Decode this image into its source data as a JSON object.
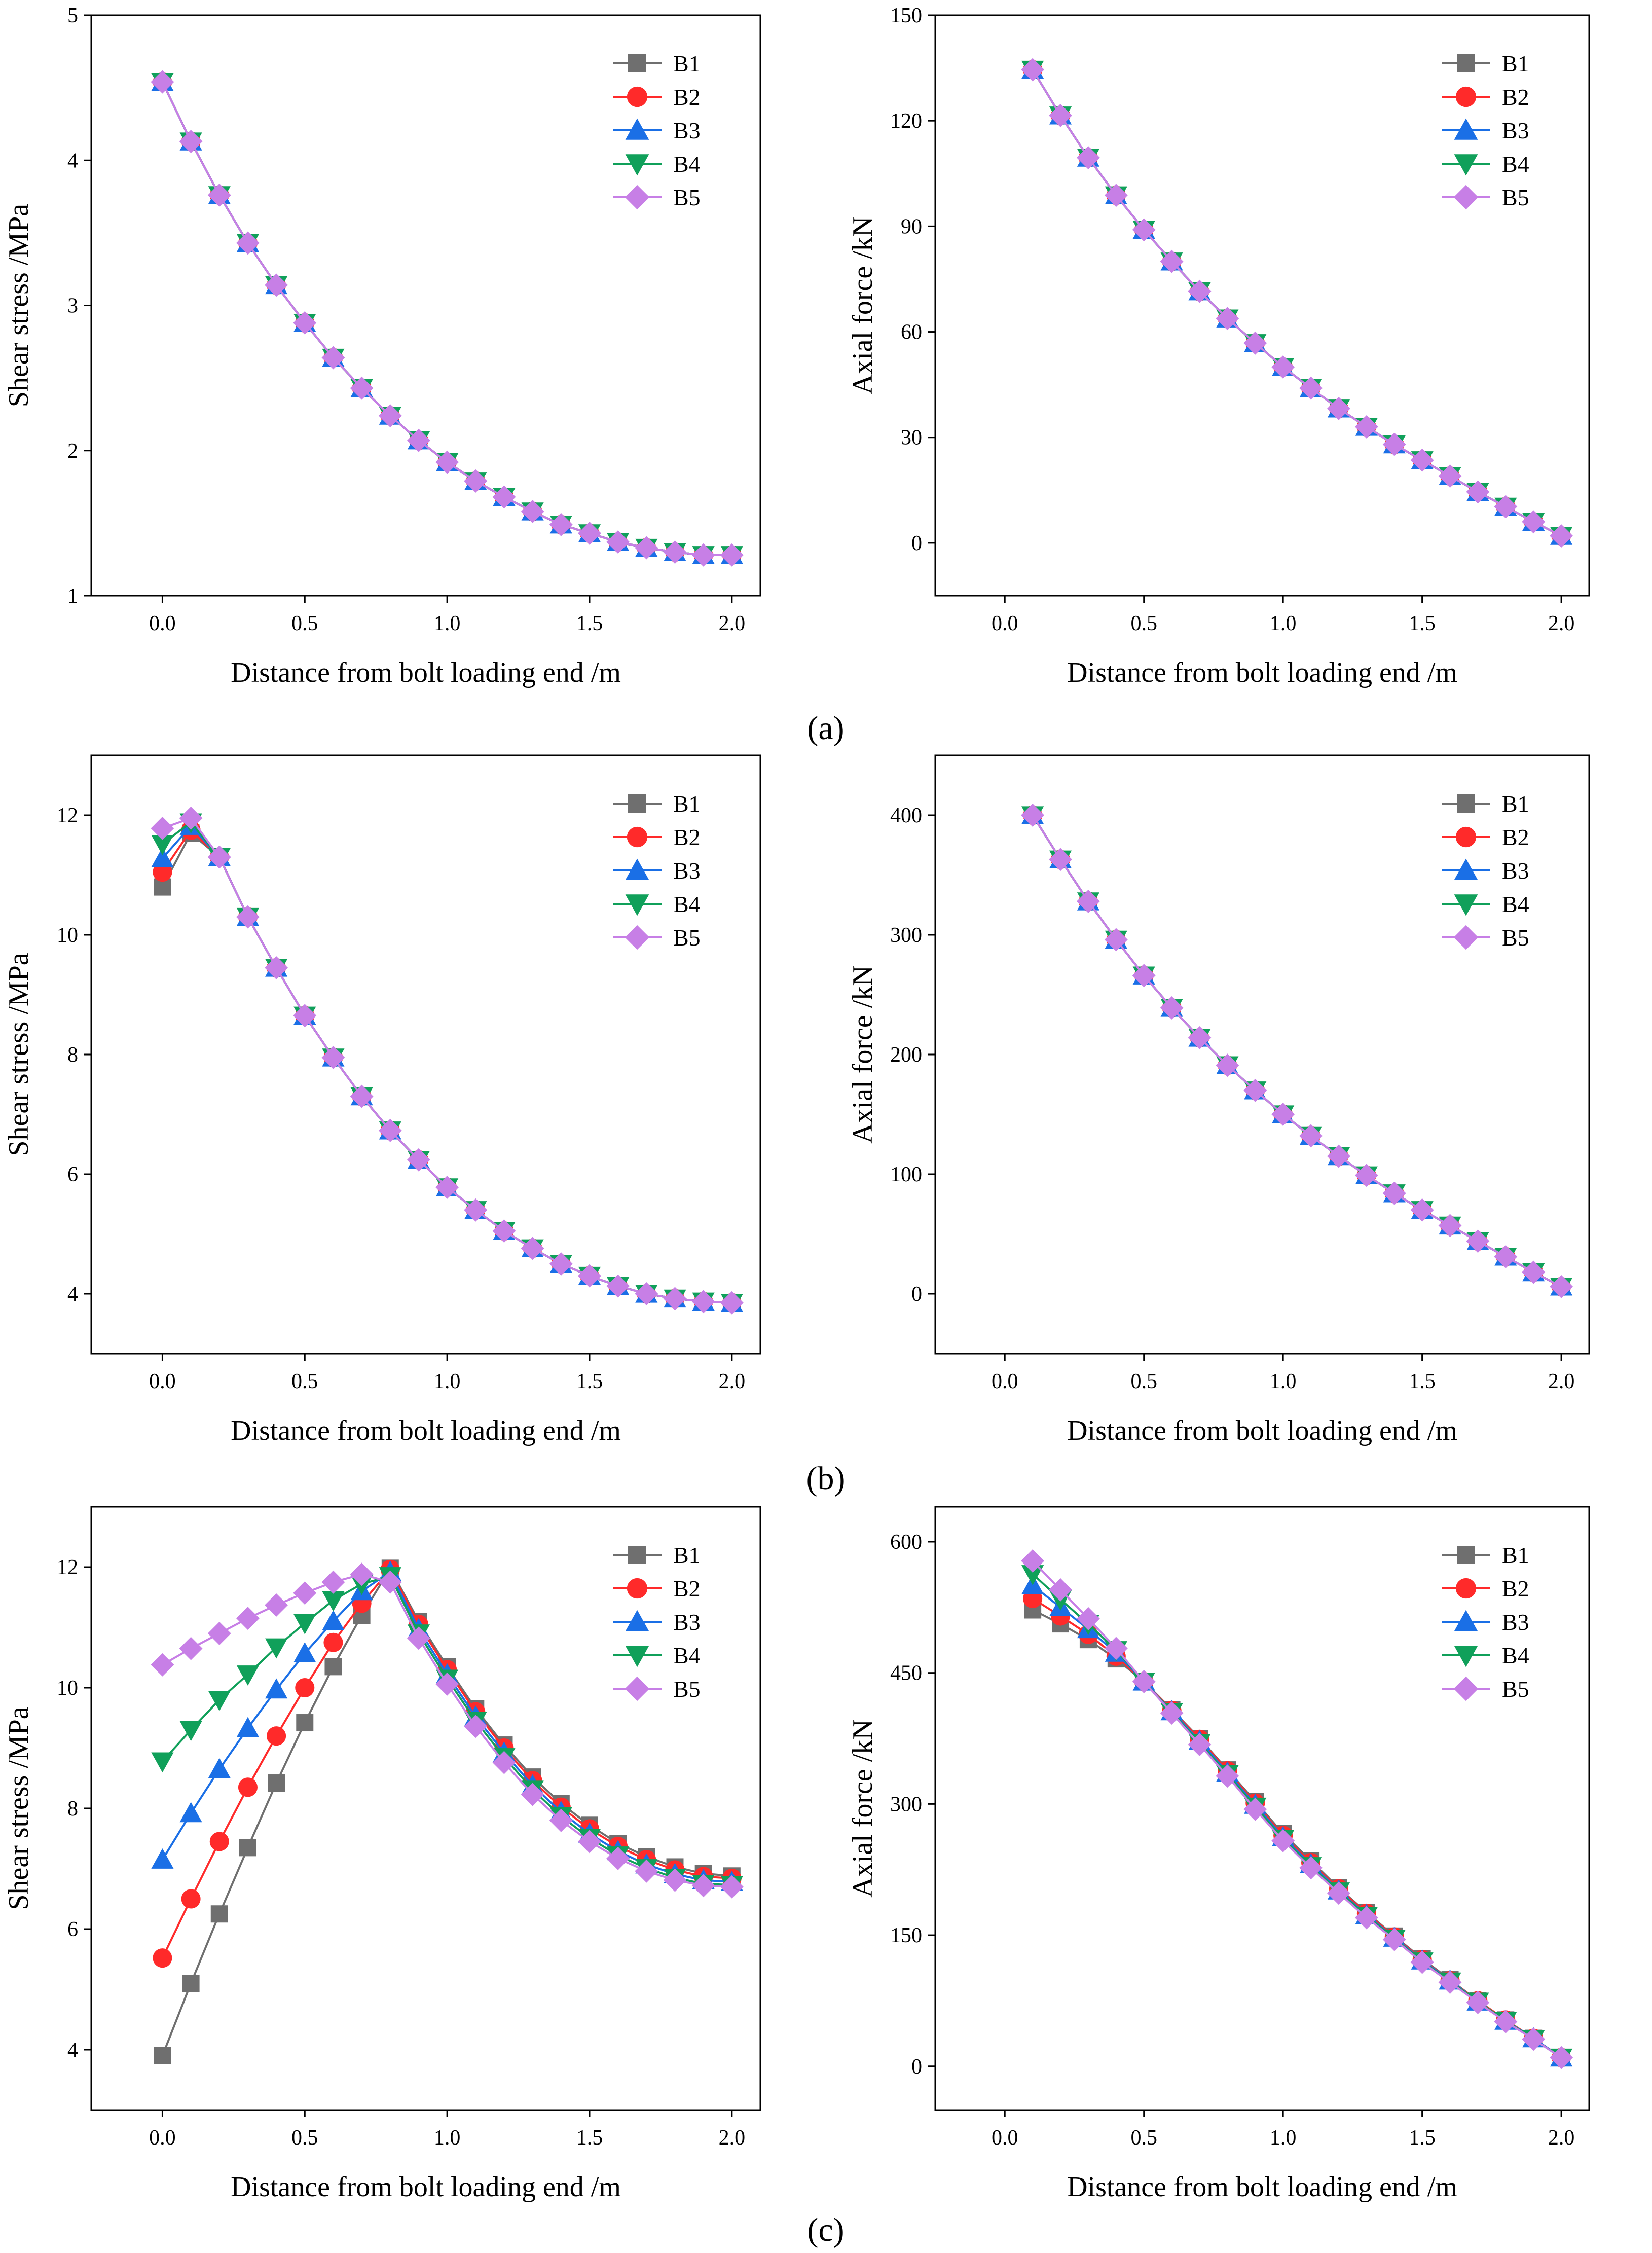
{
  "figure": {
    "panel_labels": [
      "(a)",
      "(b)",
      "(c)"
    ]
  },
  "series_style": [
    {
      "name": "B1",
      "color": "#6f6f6f",
      "marker": "square"
    },
    {
      "name": "B2",
      "color": "#ff2a2a",
      "marker": "circle"
    },
    {
      "name": "B3",
      "color": "#1a6fe6",
      "marker": "triangle-up"
    },
    {
      "name": "B4",
      "color": "#10a05a",
      "marker": "triangle-down"
    },
    {
      "name": "B5",
      "color": "#c77fe6",
      "marker": "diamond"
    }
  ],
  "chart_data": [
    {
      "id": "a-shear",
      "type": "line",
      "panel": "(a)",
      "xlabel": "Distance from bolt loading end /m",
      "ylabel": "Shear stress /MPa",
      "xlim": [
        -0.25,
        2.1
      ],
      "ylim": [
        1,
        5
      ],
      "xticks": [
        "0.0",
        "0.5",
        "1.0",
        "1.5",
        "2.0"
      ],
      "xtick_values": [
        0,
        0.5,
        1.0,
        1.5,
        2.0
      ],
      "yticks": [
        "1",
        "2",
        "3",
        "4",
        "5"
      ],
      "ytick_values": [
        1,
        2,
        3,
        4,
        5
      ],
      "x": [
        0,
        0.1,
        0.2,
        0.3,
        0.4,
        0.5,
        0.6,
        0.7,
        0.8,
        0.9,
        1.0,
        1.1,
        1.2,
        1.3,
        1.4,
        1.5,
        1.6,
        1.7,
        1.8,
        1.9,
        2.0
      ],
      "series": [
        {
          "name": "B1",
          "values": [
            4.54,
            4.13,
            3.76,
            3.43,
            3.14,
            2.88,
            2.64,
            2.43,
            2.24,
            2.07,
            1.92,
            1.79,
            1.68,
            1.58,
            1.49,
            1.43,
            1.37,
            1.33,
            1.3,
            1.28,
            1.28
          ]
        },
        {
          "name": "B2",
          "values": [
            4.54,
            4.13,
            3.76,
            3.43,
            3.14,
            2.88,
            2.64,
            2.43,
            2.24,
            2.07,
            1.92,
            1.79,
            1.68,
            1.58,
            1.49,
            1.43,
            1.37,
            1.33,
            1.3,
            1.28,
            1.28
          ]
        },
        {
          "name": "B3",
          "values": [
            4.54,
            4.13,
            3.76,
            3.43,
            3.14,
            2.88,
            2.64,
            2.43,
            2.24,
            2.07,
            1.92,
            1.79,
            1.68,
            1.58,
            1.49,
            1.43,
            1.37,
            1.33,
            1.3,
            1.28,
            1.28
          ]
        },
        {
          "name": "B4",
          "values": [
            4.54,
            4.13,
            3.76,
            3.43,
            3.14,
            2.88,
            2.64,
            2.43,
            2.24,
            2.07,
            1.92,
            1.79,
            1.68,
            1.58,
            1.49,
            1.43,
            1.37,
            1.33,
            1.3,
            1.28,
            1.28
          ]
        },
        {
          "name": "B5",
          "values": [
            4.54,
            4.13,
            3.76,
            3.43,
            3.14,
            2.88,
            2.64,
            2.43,
            2.24,
            2.07,
            1.92,
            1.79,
            1.68,
            1.58,
            1.49,
            1.43,
            1.37,
            1.33,
            1.3,
            1.28,
            1.28
          ]
        }
      ],
      "legend": "top-right"
    },
    {
      "id": "a-axial",
      "type": "line",
      "panel": "(a)",
      "xlabel": "Distance from bolt loading end /m",
      "ylabel": "Axial force /kN",
      "xlim": [
        -0.25,
        2.1
      ],
      "ylim": [
        -15,
        150
      ],
      "xticks": [
        "0.0",
        "0.5",
        "1.0",
        "1.5",
        "2.0"
      ],
      "xtick_values": [
        0,
        0.5,
        1.0,
        1.5,
        2.0
      ],
      "yticks": [
        "0",
        "30",
        "60",
        "90",
        "120",
        "150"
      ],
      "ytick_values": [
        0,
        30,
        60,
        90,
        120,
        150
      ],
      "x": [
        0.1,
        0.2,
        0.3,
        0.4,
        0.5,
        0.6,
        0.7,
        0.8,
        0.9,
        1.0,
        1.1,
        1.2,
        1.3,
        1.4,
        1.5,
        1.6,
        1.7,
        1.8,
        1.9,
        2.0
      ],
      "series": [
        {
          "name": "B1",
          "values": [
            134.5,
            121.5,
            109.5,
            98.8,
            89,
            80,
            71.5,
            63.8,
            56.8,
            50,
            44,
            38.2,
            33,
            28,
            23.5,
            19,
            14.5,
            10.3,
            6,
            2
          ]
        },
        {
          "name": "B2",
          "values": [
            134.5,
            121.5,
            109.5,
            98.8,
            89,
            80,
            71.5,
            63.8,
            56.8,
            50,
            44,
            38.2,
            33,
            28,
            23.5,
            19,
            14.5,
            10.3,
            6,
            2
          ]
        },
        {
          "name": "B3",
          "values": [
            134.5,
            121.5,
            109.5,
            98.8,
            89,
            80,
            71.5,
            63.8,
            56.8,
            50,
            44,
            38.2,
            33,
            28,
            23.5,
            19,
            14.5,
            10.3,
            6,
            2
          ]
        },
        {
          "name": "B4",
          "values": [
            134.5,
            121.5,
            109.5,
            98.8,
            89,
            80,
            71.5,
            63.8,
            56.8,
            50,
            44,
            38.2,
            33,
            28,
            23.5,
            19,
            14.5,
            10.3,
            6,
            2
          ]
        },
        {
          "name": "B5",
          "values": [
            134.5,
            121.5,
            109.5,
            98.8,
            89,
            80,
            71.5,
            63.8,
            56.8,
            50,
            44,
            38.2,
            33,
            28,
            23.5,
            19,
            14.5,
            10.3,
            6,
            2
          ]
        }
      ],
      "legend": "top-right"
    },
    {
      "id": "b-shear",
      "type": "line",
      "panel": "(b)",
      "xlabel": "Distance from bolt loading end /m",
      "ylabel": "Shear stress /MPa",
      "xlim": [
        -0.25,
        2.1
      ],
      "ylim": [
        3,
        13
      ],
      "xticks": [
        "0.0",
        "0.5",
        "1.0",
        "1.5",
        "2.0"
      ],
      "xtick_values": [
        0,
        0.5,
        1.0,
        1.5,
        2.0
      ],
      "yticks": [
        "4",
        "6",
        "8",
        "10",
        "12"
      ],
      "ytick_values": [
        4,
        6,
        8,
        10,
        12
      ],
      "x": [
        0,
        0.1,
        0.2,
        0.3,
        0.4,
        0.5,
        0.6,
        0.7,
        0.8,
        0.9,
        1.0,
        1.1,
        1.2,
        1.3,
        1.4,
        1.5,
        1.6,
        1.7,
        1.8,
        1.9,
        2.0
      ],
      "series": [
        {
          "name": "B1",
          "values": [
            10.8,
            11.7,
            11.3,
            10.3,
            9.45,
            8.65,
            7.95,
            7.3,
            6.73,
            6.24,
            5.78,
            5.4,
            5.05,
            4.76,
            4.5,
            4.3,
            4.13,
            4.0,
            3.92,
            3.87,
            3.85
          ]
        },
        {
          "name": "B2",
          "values": [
            11.05,
            11.75,
            11.3,
            10.3,
            9.45,
            8.65,
            7.95,
            7.3,
            6.73,
            6.24,
            5.78,
            5.4,
            5.05,
            4.76,
            4.5,
            4.3,
            4.13,
            4.0,
            3.92,
            3.87,
            3.85
          ]
        },
        {
          "name": "B3",
          "values": [
            11.28,
            11.82,
            11.3,
            10.3,
            9.45,
            8.65,
            7.95,
            7.3,
            6.73,
            6.24,
            5.78,
            5.4,
            5.05,
            4.76,
            4.5,
            4.3,
            4.13,
            4.0,
            3.92,
            3.87,
            3.85
          ]
        },
        {
          "name": "B4",
          "values": [
            11.52,
            11.88,
            11.3,
            10.3,
            9.45,
            8.65,
            7.95,
            7.3,
            6.73,
            6.24,
            5.78,
            5.4,
            5.05,
            4.76,
            4.5,
            4.3,
            4.13,
            4.0,
            3.92,
            3.87,
            3.85
          ]
        },
        {
          "name": "B5",
          "values": [
            11.78,
            11.95,
            11.3,
            10.3,
            9.45,
            8.65,
            7.95,
            7.3,
            6.73,
            6.24,
            5.78,
            5.4,
            5.05,
            4.76,
            4.5,
            4.3,
            4.13,
            4.0,
            3.92,
            3.87,
            3.85
          ]
        }
      ],
      "legend": "top-right"
    },
    {
      "id": "b-axial",
      "type": "line",
      "panel": "(b)",
      "xlabel": "Distance from bolt loading end /m",
      "ylabel": "Axial force /kN",
      "xlim": [
        -0.25,
        2.1
      ],
      "ylim": [
        -50,
        450
      ],
      "xticks": [
        "0.0",
        "0.5",
        "1.0",
        "1.5",
        "2.0"
      ],
      "xtick_values": [
        0,
        0.5,
        1.0,
        1.5,
        2.0
      ],
      "yticks": [
        "0",
        "100",
        "200",
        "300",
        "400"
      ],
      "ytick_values": [
        0,
        100,
        200,
        300,
        400
      ],
      "x": [
        0.1,
        0.2,
        0.3,
        0.4,
        0.5,
        0.6,
        0.7,
        0.8,
        0.9,
        1.0,
        1.1,
        1.2,
        1.3,
        1.4,
        1.5,
        1.6,
        1.7,
        1.8,
        1.9,
        2.0
      ],
      "series": [
        {
          "name": "B1",
          "values": [
            400,
            363,
            328,
            296,
            266,
            239,
            214,
            191,
            170,
            150,
            132,
            115,
            99,
            84,
            70,
            57,
            44,
            31,
            18,
            6
          ]
        },
        {
          "name": "B2",
          "values": [
            400,
            363,
            328,
            296,
            266,
            239,
            214,
            191,
            170,
            150,
            132,
            115,
            99,
            84,
            70,
            57,
            44,
            31,
            18,
            6
          ]
        },
        {
          "name": "B3",
          "values": [
            400,
            363,
            328,
            296,
            266,
            239,
            214,
            191,
            170,
            150,
            132,
            115,
            99,
            84,
            70,
            57,
            44,
            31,
            18,
            6
          ]
        },
        {
          "name": "B4",
          "values": [
            400,
            363,
            328,
            296,
            266,
            239,
            214,
            191,
            170,
            150,
            132,
            115,
            99,
            84,
            70,
            57,
            44,
            31,
            18,
            6
          ]
        },
        {
          "name": "B5",
          "values": [
            400,
            363,
            328,
            296,
            266,
            239,
            214,
            191,
            170,
            150,
            132,
            115,
            99,
            84,
            70,
            57,
            44,
            31,
            18,
            6
          ]
        }
      ],
      "legend": "top-right"
    },
    {
      "id": "c-shear",
      "type": "line",
      "panel": "(c)",
      "xlabel": "Distance from bolt loading end /m",
      "ylabel": "Shear stress /MPa",
      "xlim": [
        -0.25,
        2.1
      ],
      "ylim": [
        3,
        13
      ],
      "xticks": [
        "0.0",
        "0.5",
        "1.0",
        "1.5",
        "2.0"
      ],
      "xtick_values": [
        0,
        0.5,
        1.0,
        1.5,
        2.0
      ],
      "yticks": [
        "4",
        "6",
        "8",
        "10",
        "12"
      ],
      "ytick_values": [
        4,
        6,
        8,
        10,
        12
      ],
      "x": [
        0,
        0.1,
        0.2,
        0.3,
        0.4,
        0.5,
        0.6,
        0.7,
        0.8,
        0.9,
        1.0,
        1.1,
        1.2,
        1.3,
        1.4,
        1.5,
        1.6,
        1.7,
        1.8,
        1.9,
        2.0
      ],
      "series": [
        {
          "name": "B1",
          "values": [
            3.9,
            5.1,
            6.25,
            7.35,
            8.42,
            9.42,
            10.35,
            11.2,
            11.98,
            11.1,
            10.35,
            9.65,
            9.05,
            8.52,
            8.08,
            7.72,
            7.42,
            7.2,
            7.03,
            6.92,
            6.88
          ]
        },
        {
          "name": "B2",
          "values": [
            5.52,
            6.5,
            7.45,
            8.35,
            9.2,
            10.0,
            10.75,
            11.4,
            11.96,
            11.05,
            10.3,
            9.6,
            9.0,
            8.46,
            8.02,
            7.66,
            7.37,
            7.15,
            6.98,
            6.87,
            6.84
          ]
        },
        {
          "name": "B3",
          "values": [
            7.15,
            7.92,
            8.65,
            9.33,
            9.97,
            10.57,
            11.1,
            11.6,
            11.92,
            10.97,
            10.22,
            9.52,
            8.92,
            8.38,
            7.94,
            7.58,
            7.29,
            7.07,
            6.91,
            6.81,
            6.78
          ]
        },
        {
          "name": "B4",
          "values": [
            8.78,
            9.3,
            9.8,
            10.22,
            10.67,
            11.07,
            11.45,
            11.72,
            11.85,
            10.9,
            10.15,
            9.45,
            8.85,
            8.31,
            7.87,
            7.51,
            7.22,
            7.01,
            6.85,
            6.75,
            6.73
          ]
        },
        {
          "name": "B5",
          "values": [
            10.38,
            10.65,
            10.9,
            11.15,
            11.37,
            11.57,
            11.75,
            11.88,
            11.75,
            10.82,
            10.06,
            9.36,
            8.76,
            8.23,
            7.8,
            7.45,
            7.17,
            6.96,
            6.81,
            6.72,
            6.7
          ]
        }
      ],
      "legend": "top-right"
    },
    {
      "id": "c-axial",
      "type": "line",
      "panel": "(c)",
      "xlabel": "Distance from bolt loading end /m",
      "ylabel": "Axial force /kN",
      "xlim": [
        -0.25,
        2.1
      ],
      "ylim": [
        -50,
        640
      ],
      "xticks": [
        "0.0",
        "0.5",
        "1.0",
        "1.5",
        "2.0"
      ],
      "xtick_values": [
        0,
        0.5,
        1.0,
        1.5,
        2.0
      ],
      "yticks": [
        "0",
        "150",
        "300",
        "450",
        "600"
      ],
      "ytick_values": [
        0,
        150,
        300,
        450,
        600
      ],
      "x": [
        0.1,
        0.2,
        0.3,
        0.4,
        0.5,
        0.6,
        0.7,
        0.8,
        0.9,
        1.0,
        1.1,
        1.2,
        1.3,
        1.4,
        1.5,
        1.6,
        1.7,
        1.8,
        1.9,
        2.0
      ],
      "series": [
        {
          "name": "B1",
          "values": [
            522,
            506,
            488,
            466,
            440,
            408,
            375,
            339,
            303,
            266,
            235,
            204,
            176,
            149,
            123,
            99,
            75,
            53,
            32,
            10
          ]
        },
        {
          "name": "B2",
          "values": [
            535,
            515,
            494,
            469,
            440,
            407,
            374,
            338,
            301,
            264,
            233,
            203,
            175,
            148,
            122,
            98,
            75,
            53,
            32,
            10
          ]
        },
        {
          "name": "B3",
          "values": [
            550,
            525,
            500,
            473,
            440,
            406,
            372,
            336,
            299,
            262,
            231,
            201,
            173,
            147,
            121,
            98,
            74,
            52,
            32,
            10
          ]
        },
        {
          "name": "B4",
          "values": [
            563,
            534,
            506,
            476,
            440,
            405,
            370,
            334,
            297,
            260,
            229,
            200,
            172,
            146,
            120,
            97,
            74,
            52,
            31,
            10
          ]
        },
        {
          "name": "B5",
          "values": [
            578,
            545,
            512,
            478,
            440,
            404,
            368,
            332,
            294,
            258,
            227,
            198,
            170,
            145,
            119,
            96,
            73,
            51,
            31,
            10
          ]
        }
      ],
      "legend": "top-right"
    }
  ]
}
